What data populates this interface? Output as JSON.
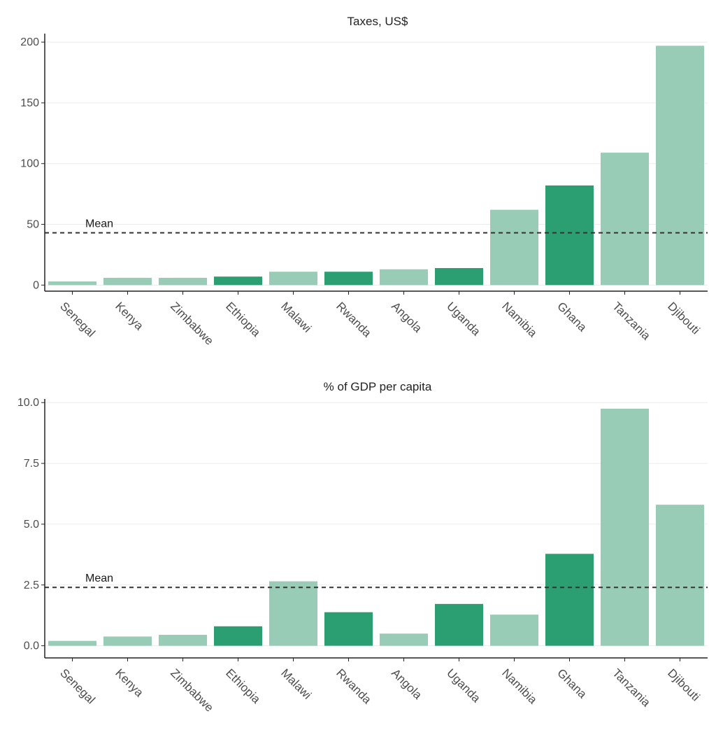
{
  "chart_data": [
    {
      "type": "bar",
      "title": "Taxes, US$",
      "xlabel": "",
      "ylabel": "",
      "categories": [
        "Senegal",
        "Kenya",
        "Zimbabwe",
        "Ethiopia",
        "Malawi",
        "Rwanda",
        "Angola",
        "Uganda",
        "Namibia",
        "Ghana",
        "Tanzania",
        "Djibouti"
      ],
      "values": [
        3,
        6,
        6,
        7,
        11,
        11,
        13,
        14,
        62,
        82,
        109,
        197
      ],
      "highlight": [
        false,
        false,
        false,
        true,
        false,
        true,
        false,
        true,
        false,
        true,
        false,
        false
      ],
      "ylim": [
        -5,
        207
      ],
      "yticks": [
        0,
        50,
        100,
        150,
        200
      ],
      "ytick_labels": [
        "0",
        "50",
        "100",
        "150",
        "200"
      ],
      "mean": 43,
      "mean_label": "Mean",
      "grid": "horizontal-major"
    },
    {
      "type": "bar",
      "title": "% of GDP per capita",
      "xlabel": "",
      "ylabel": "",
      "categories": [
        "Senegal",
        "Kenya",
        "Zimbabwe",
        "Ethiopia",
        "Malawi",
        "Rwanda",
        "Angola",
        "Uganda",
        "Namibia",
        "Ghana",
        "Tanzania",
        "Djibouti"
      ],
      "values": [
        0.2,
        0.38,
        0.45,
        0.8,
        2.65,
        1.38,
        0.5,
        1.72,
        1.28,
        3.78,
        9.75,
        5.8
      ],
      "highlight": [
        false,
        false,
        false,
        true,
        false,
        true,
        false,
        true,
        false,
        true,
        false,
        false
      ],
      "ylim": [
        -0.5,
        10.15
      ],
      "yticks": [
        0,
        2.5,
        5,
        7.5,
        10
      ],
      "ytick_labels": [
        "0.0",
        "2.5",
        "5.0",
        "7.5",
        "10.0"
      ],
      "mean": 2.4,
      "mean_label": "Mean",
      "grid": "horizontal-major"
    }
  ],
  "colors": {
    "bar_default": "#98ccb6",
    "bar_highlight": "#2b9f72",
    "grid": "#ebebeb",
    "axis": "#222222",
    "mean_line": "#333333"
  }
}
